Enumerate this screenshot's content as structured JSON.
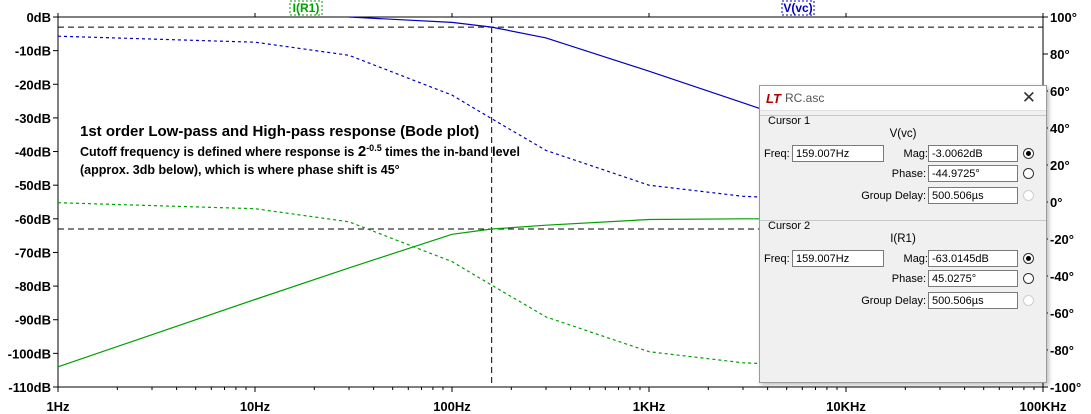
{
  "chart_data": {
    "type": "line",
    "x_scale": "log",
    "xlim": [
      1,
      100000
    ],
    "x_tick_labels": [
      "1Hz",
      "10Hz",
      "100Hz",
      "1KHz",
      "10KHz",
      "100KHz"
    ],
    "x_tick_values": [
      1,
      10,
      100,
      1000,
      10000,
      100000
    ],
    "ylim_left": [
      -110,
      0
    ],
    "y_left_ticks": [
      0,
      -10,
      -20,
      -30,
      -40,
      -50,
      -60,
      -70,
      -80,
      -90,
      -100,
      -110
    ],
    "y_left_tick_labels": [
      "0dB",
      "-10dB",
      "-20dB",
      "-30dB",
      "-40dB",
      "-50dB",
      "-60dB",
      "-70dB",
      "-80dB",
      "-90dB",
      "-100dB",
      "-110dB"
    ],
    "ylim_right": [
      -100,
      100
    ],
    "y_right_ticks": [
      100,
      80,
      60,
      40,
      20,
      0,
      -20,
      -40,
      -60,
      -80,
      -100
    ],
    "y_right_tick_labels": [
      "100°",
      "80°",
      "60°",
      "40°",
      "20°",
      "0°",
      "-20°",
      "-40°",
      "-60°",
      "-80°",
      "-100°"
    ],
    "series": [
      {
        "name": "V(vc)",
        "quantity": "magnitude",
        "axis": "left",
        "color": "#0000c0",
        "dashed": false,
        "x": [
          30,
          100,
          159.007,
          300,
          1000,
          3000,
          10000,
          30000,
          100000
        ],
        "y": [
          -0.0,
          -1.6,
          -3.0062,
          -6.2,
          -16.1,
          -25.5,
          -36.0,
          -45.5,
          -56.0
        ]
      },
      {
        "name": "V(vc)",
        "quantity": "phase",
        "axis": "right",
        "color": "#00a000",
        "dashed": true,
        "x": [
          1,
          10,
          30,
          100,
          159.007,
          300,
          1000,
          3000,
          10000,
          100000
        ],
        "y": [
          -0.36,
          -3.6,
          -10.7,
          -32.2,
          -44.9725,
          -62.1,
          -80.9,
          -86.9,
          -89.1,
          -89.9
        ]
      },
      {
        "name": "I(R1)",
        "quantity": "magnitude",
        "axis": "left",
        "color": "#00a000",
        "dashed": false,
        "x": [
          1,
          10,
          30,
          100,
          159.007,
          300,
          1000,
          3000,
          10000,
          100000
        ],
        "y": [
          -104,
          -84,
          -74.6,
          -64.6,
          -63.0145,
          -61.9,
          -60.2,
          -60.0,
          -60.0,
          -60.0
        ]
      },
      {
        "name": "I(R1)",
        "quantity": "phase",
        "axis": "right",
        "color": "#0000c0",
        "dashed": true,
        "x": [
          1,
          10,
          30,
          100,
          159.007,
          300,
          1000,
          3000,
          10000,
          100000
        ],
        "y": [
          89.6,
          86.4,
          79.3,
          57.8,
          45.0275,
          27.9,
          9.1,
          3.1,
          0.9,
          0.1
        ]
      }
    ],
    "cursor_freq": 159.007,
    "cursor_levels_db": [
      -3.0062,
      -63.0145
    ],
    "trace_labels": [
      {
        "text": "I(R1)",
        "color": "#00a000"
      },
      {
        "text": "V(vc)",
        "color": "#0000c0"
      }
    ],
    "grid": false
  },
  "annotation": {
    "title": "1st order Low-pass and High-pass response (Bode plot)",
    "line1_pre": "Cutoff frequency is defined where response is ",
    "line1_base": "2",
    "line1_exp": "-0.5",
    "line1_post": " times the in-band level",
    "line2": "(approx. 3db below), which is where phase shift is 45°"
  },
  "cursor_window": {
    "title": "RC.asc",
    "cursor1": {
      "label": "Cursor 1",
      "trace": "V(vc)",
      "freq_label": "Freq:",
      "freq": "159.007Hz",
      "mag_label": "Mag:",
      "mag": "-3.0062dB",
      "phase_label": "Phase:",
      "phase": "-44.9725°",
      "gd_label": "Group Delay:",
      "gd": "500.506µs"
    },
    "cursor2": {
      "label": "Cursor 2",
      "trace": "I(R1)",
      "freq_label": "Freq:",
      "freq": "159.007Hz",
      "mag_label": "Mag:",
      "mag": "-63.0145dB",
      "phase_label": "Phase:",
      "phase": "45.0275°",
      "gd_label": "Group Delay:",
      "gd": "500.506µs"
    }
  }
}
